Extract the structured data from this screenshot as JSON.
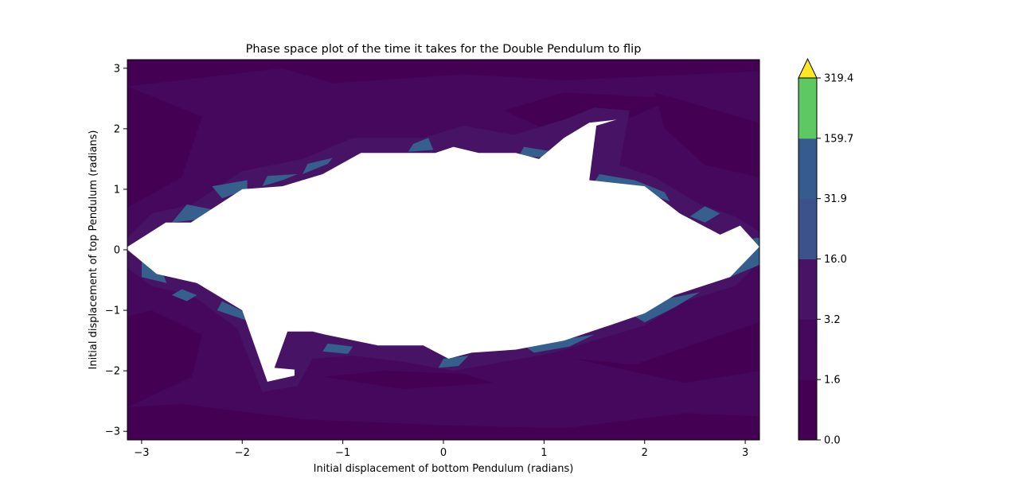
{
  "chart_data": {
    "type": "heatmap",
    "title": "Phase space plot of the time it takes for the Double Pendulum to flip",
    "xlabel": "Initial displacement of bottom Pendulum (radians)",
    "ylabel": "Initial displacement of top Pendulum (radians)",
    "xlim": [
      -3.14159,
      3.14159
    ],
    "ylim": [
      -3.14159,
      3.14159
    ],
    "x_ticks": [
      -3,
      -2,
      -1,
      0,
      1,
      2,
      3
    ],
    "x_tick_labels": [
      "−3",
      "−2",
      "−1",
      "0",
      "1",
      "2",
      "3"
    ],
    "y_ticks": [
      -3,
      -2,
      -1,
      0,
      1,
      2,
      3
    ],
    "y_tick_labels": [
      "−3",
      "−2",
      "−1",
      "0",
      "1",
      "2",
      "3"
    ],
    "grid": false,
    "colorbar": {
      "levels": [
        0.0,
        1.6,
        3.2,
        16.0,
        31.9,
        159.7,
        319.4
      ],
      "tick_labels": [
        "0.0",
        "1.6",
        "3.2",
        "16.0",
        "31.9",
        "159.7",
        "319.4"
      ],
      "colors": [
        "#440154",
        "#46085c",
        "#471365",
        "#3b528b",
        "#365c8d",
        "#5ec962"
      ],
      "extend_color": "#fde725",
      "extend": "max",
      "location": "right"
    },
    "palette": {
      "level_0": "#440154",
      "level_1": "#46085c",
      "level_2": "#471365",
      "level_3": "#355f8d",
      "background": "#ffffff"
    },
    "no_flip_region": {
      "description_color": "#ffffff",
      "boundary_x": [
        -3.14,
        -2.76,
        -2.51,
        -2.0,
        -1.6,
        -1.2,
        -0.82,
        -0.35,
        -0.08,
        0.1,
        0.35,
        0.72,
        0.95,
        1.2,
        1.45,
        1.72,
        1.52,
        1.45,
        2.0,
        2.35,
        2.75,
        2.95,
        3.14,
        2.85,
        2.3,
        2.0,
        1.65,
        1.2,
        0.72,
        0.28,
        0.05,
        -0.2,
        -0.65,
        -1.18,
        -1.3,
        -1.55,
        -1.68,
        -1.48,
        -1.48,
        -1.75,
        -2.0,
        -2.45,
        -2.85,
        -3.14
      ],
      "boundary_y": [
        0.05,
        0.45,
        0.45,
        1.0,
        1.05,
        1.25,
        1.6,
        1.6,
        1.6,
        1.7,
        1.6,
        1.6,
        1.5,
        1.85,
        2.1,
        2.15,
        2.05,
        1.15,
        1.05,
        0.6,
        0.25,
        0.4,
        0.05,
        -0.45,
        -0.75,
        -1.05,
        -1.25,
        -1.5,
        -1.65,
        -1.7,
        -1.8,
        -1.58,
        -1.58,
        -1.4,
        -1.35,
        -1.35,
        -1.95,
        -1.98,
        -2.08,
        -2.18,
        -1.0,
        -0.55,
        -0.4,
        0.0
      ]
    }
  }
}
